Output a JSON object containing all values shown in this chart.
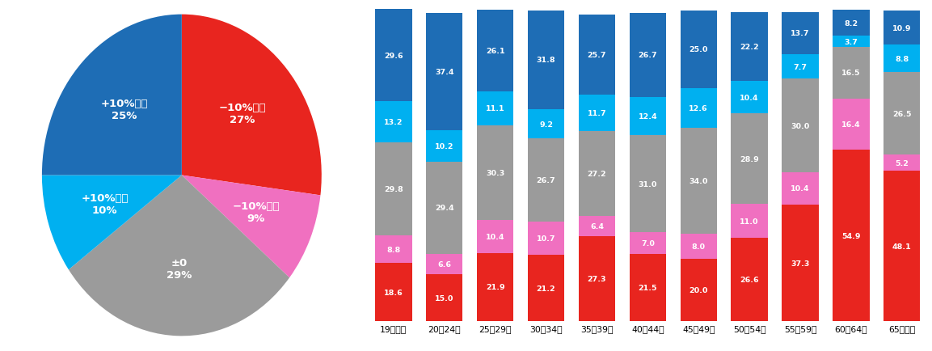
{
  "pie": {
    "labels": [
      "−10%以上",
      "−10%未満",
      "±0",
      "+10%未満",
      "+10%以上"
    ],
    "values": [
      27,
      9,
      29,
      10,
      25
    ],
    "colors": [
      "#e8251f",
      "#f070c0",
      "#9b9b9b",
      "#00b0f0",
      "#1e6db5"
    ],
    "startangle": 90,
    "text_color": "#ffffff"
  },
  "bar": {
    "categories": [
      "19歳以下",
      "20～24歳",
      "25～29歳",
      "30～34歳",
      "35～39歳",
      "40～44歳",
      "45～49歳",
      "50～54歳",
      "55～59歳",
      "60～64歳",
      "65歳以上"
    ],
    "series": {
      "−10%以上": [
        18.6,
        15.0,
        21.9,
        21.2,
        27.3,
        21.5,
        20.0,
        26.6,
        37.3,
        54.9,
        48.1
      ],
      "−10%未満": [
        8.8,
        6.6,
        10.4,
        10.7,
        6.4,
        7.0,
        8.0,
        11.0,
        10.4,
        16.4,
        5.2
      ],
      "±0": [
        29.8,
        29.4,
        30.3,
        26.7,
        27.2,
        31.0,
        34.0,
        28.9,
        30.0,
        16.5,
        26.5
      ],
      "+10%未満": [
        13.2,
        10.2,
        11.1,
        9.2,
        11.7,
        12.4,
        12.6,
        10.4,
        7.7,
        3.7,
        8.8
      ],
      "+10%以上": [
        29.6,
        37.4,
        26.1,
        31.8,
        25.7,
        26.7,
        25.0,
        22.2,
        13.7,
        8.2,
        10.9
      ]
    },
    "colors": {
      "−10%以上": "#e8251f",
      "−10%未満": "#f070c0",
      "±0": "#9b9b9b",
      "+10%未満": "#00b0f0",
      "+10%以上": "#1e6db5"
    },
    "order": [
      "−10%以上",
      "−10%未満",
      "±0",
      "+10%未満",
      "+10%以上"
    ]
  },
  "background_color": "#ffffff"
}
